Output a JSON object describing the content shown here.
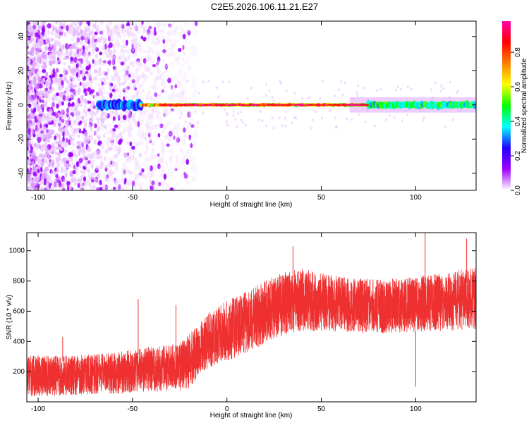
{
  "title": "C2E5.2026.106.11.21.E27",
  "chart_data": [
    {
      "type": "heatmap",
      "name": "spectrogram",
      "xlabel": "Height of straight line (km)",
      "ylabel": "Frequency (Hz)",
      "xlim": [
        -106,
        132
      ],
      "ylim": [
        -50,
        49
      ],
      "xticks": [
        -100,
        -50,
        0,
        50,
        100
      ],
      "yticks": [
        -40,
        -20,
        0,
        20,
        40
      ],
      "colorbar": {
        "label": "Normalized spectral amplitude",
        "range": [
          0,
          0.98
        ],
        "ticks": [
          0.0,
          0.2,
          0.4,
          0.6,
          0.8
        ],
        "stops": [
          "#ffffff",
          "#a000ff",
          "#2000ff",
          "#00ffff",
          "#00ff00",
          "#ffff00",
          "#ff8000",
          "#ff0000",
          "#ff00aa"
        ]
      },
      "bands": [
        {
          "x_from": -106,
          "x_to": -30,
          "spread_hz": 50,
          "amplitude": 0.12,
          "note": "scattered noise"
        },
        {
          "x_from": -68,
          "x_to": -45,
          "spread_hz": 3,
          "amplitude": 0.35
        },
        {
          "x_from": -45,
          "x_to": 75,
          "spread_hz": 1,
          "amplitude": 0.85
        },
        {
          "x_from": 75,
          "x_to": 132,
          "spread_hz": 2.5,
          "amplitude": 0.55
        }
      ]
    },
    {
      "type": "line",
      "name": "snr",
      "xlabel": "Height of straight line (km)",
      "ylabel": "SNR (10 * v/v)",
      "xlim": [
        -106,
        132
      ],
      "ylim": [
        0,
        1120
      ],
      "xticks": [
        -100,
        -50,
        0,
        50,
        100
      ],
      "yticks": [
        200,
        400,
        600,
        800,
        1000
      ],
      "color": "#ee3030",
      "envelope": {
        "x": [
          -106,
          -80,
          -60,
          -40,
          -25,
          -20,
          -10,
          0,
          10,
          20,
          30,
          40,
          60,
          80,
          100,
          120,
          132
        ],
        "low": [
          40,
          50,
          60,
          70,
          80,
          100,
          230,
          280,
          330,
          390,
          450,
          480,
          470,
          460,
          470,
          480,
          490
        ],
        "high": [
          300,
          300,
          320,
          360,
          380,
          440,
          580,
          660,
          720,
          790,
          850,
          870,
          820,
          800,
          820,
          860,
          880
        ]
      },
      "peaks": [
        {
          "x": -87,
          "y": 430
        },
        {
          "x": -47,
          "y": 680
        },
        {
          "x": -27,
          "y": 640
        },
        {
          "x": 35,
          "y": 1030
        },
        {
          "x": 105,
          "y": 1120
        },
        {
          "x": 127,
          "y": 1080
        }
      ],
      "dips": [
        {
          "x": 100,
          "y": 100
        }
      ]
    }
  ]
}
